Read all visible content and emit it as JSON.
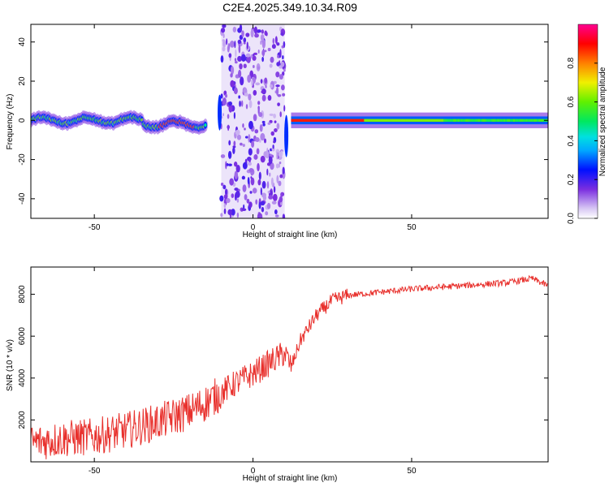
{
  "figure": {
    "title": "C2E4.2025.349.10.34.R09"
  },
  "chart_data": [
    {
      "type": "heatmap",
      "xlabel": "Height of straight line (km)",
      "ylabel": "Frequency (Hz)",
      "xlim": [
        -70,
        93
      ],
      "ylim": [
        -50,
        49
      ],
      "x_ticks": [
        -50,
        0,
        50
      ],
      "y_ticks": [
        40,
        20,
        0,
        -20,
        -40
      ],
      "colorbar": {
        "label": "Normalized spectral amplitude",
        "range": [
          0,
          1
        ],
        "ticks": [
          0.0,
          0.2,
          0.4,
          0.6,
          0.8
        ]
      },
      "features": [
        {
          "x_range": [
            -70,
            -15
          ],
          "center_freq": 0,
          "spread": 5,
          "description_class": "noisy-band"
        },
        {
          "x_range": [
            -10,
            10
          ],
          "center_freq": 0,
          "spread": 49,
          "description_class": "scattered"
        },
        {
          "x_range": [
            12,
            93
          ],
          "center_freq": 0,
          "spread": 3,
          "description_class": "steady-band"
        }
      ]
    },
    {
      "type": "line",
      "xlabel": "Height of straight line (km)",
      "ylabel": "SNR (10 * v/v)",
      "xlim": [
        -70,
        93
      ],
      "ylim": [
        0,
        9300
      ],
      "x_ticks": [
        -50,
        0,
        50
      ],
      "y_ticks": [
        2000,
        4000,
        6000,
        8000
      ],
      "color": "#e8302c",
      "series": [
        {
          "name": "",
          "trend": {
            "x": [
              -70,
              -60,
              -50,
              -40,
              -30,
              -20,
              -15,
              -10,
              -5,
              0,
              5,
              10,
              12,
              15,
              20,
              25,
              30,
              40,
              50,
              60,
              70,
              80,
              88,
              93
            ],
            "y": [
              900,
              1100,
              1200,
              1500,
              1900,
              2400,
              2800,
              3300,
              3800,
              4200,
              4700,
              5200,
              4500,
              5800,
              7000,
              7700,
              7950,
              8100,
              8250,
              8350,
              8450,
              8550,
              8750,
              8400
            ]
          }
        }
      ]
    }
  ]
}
